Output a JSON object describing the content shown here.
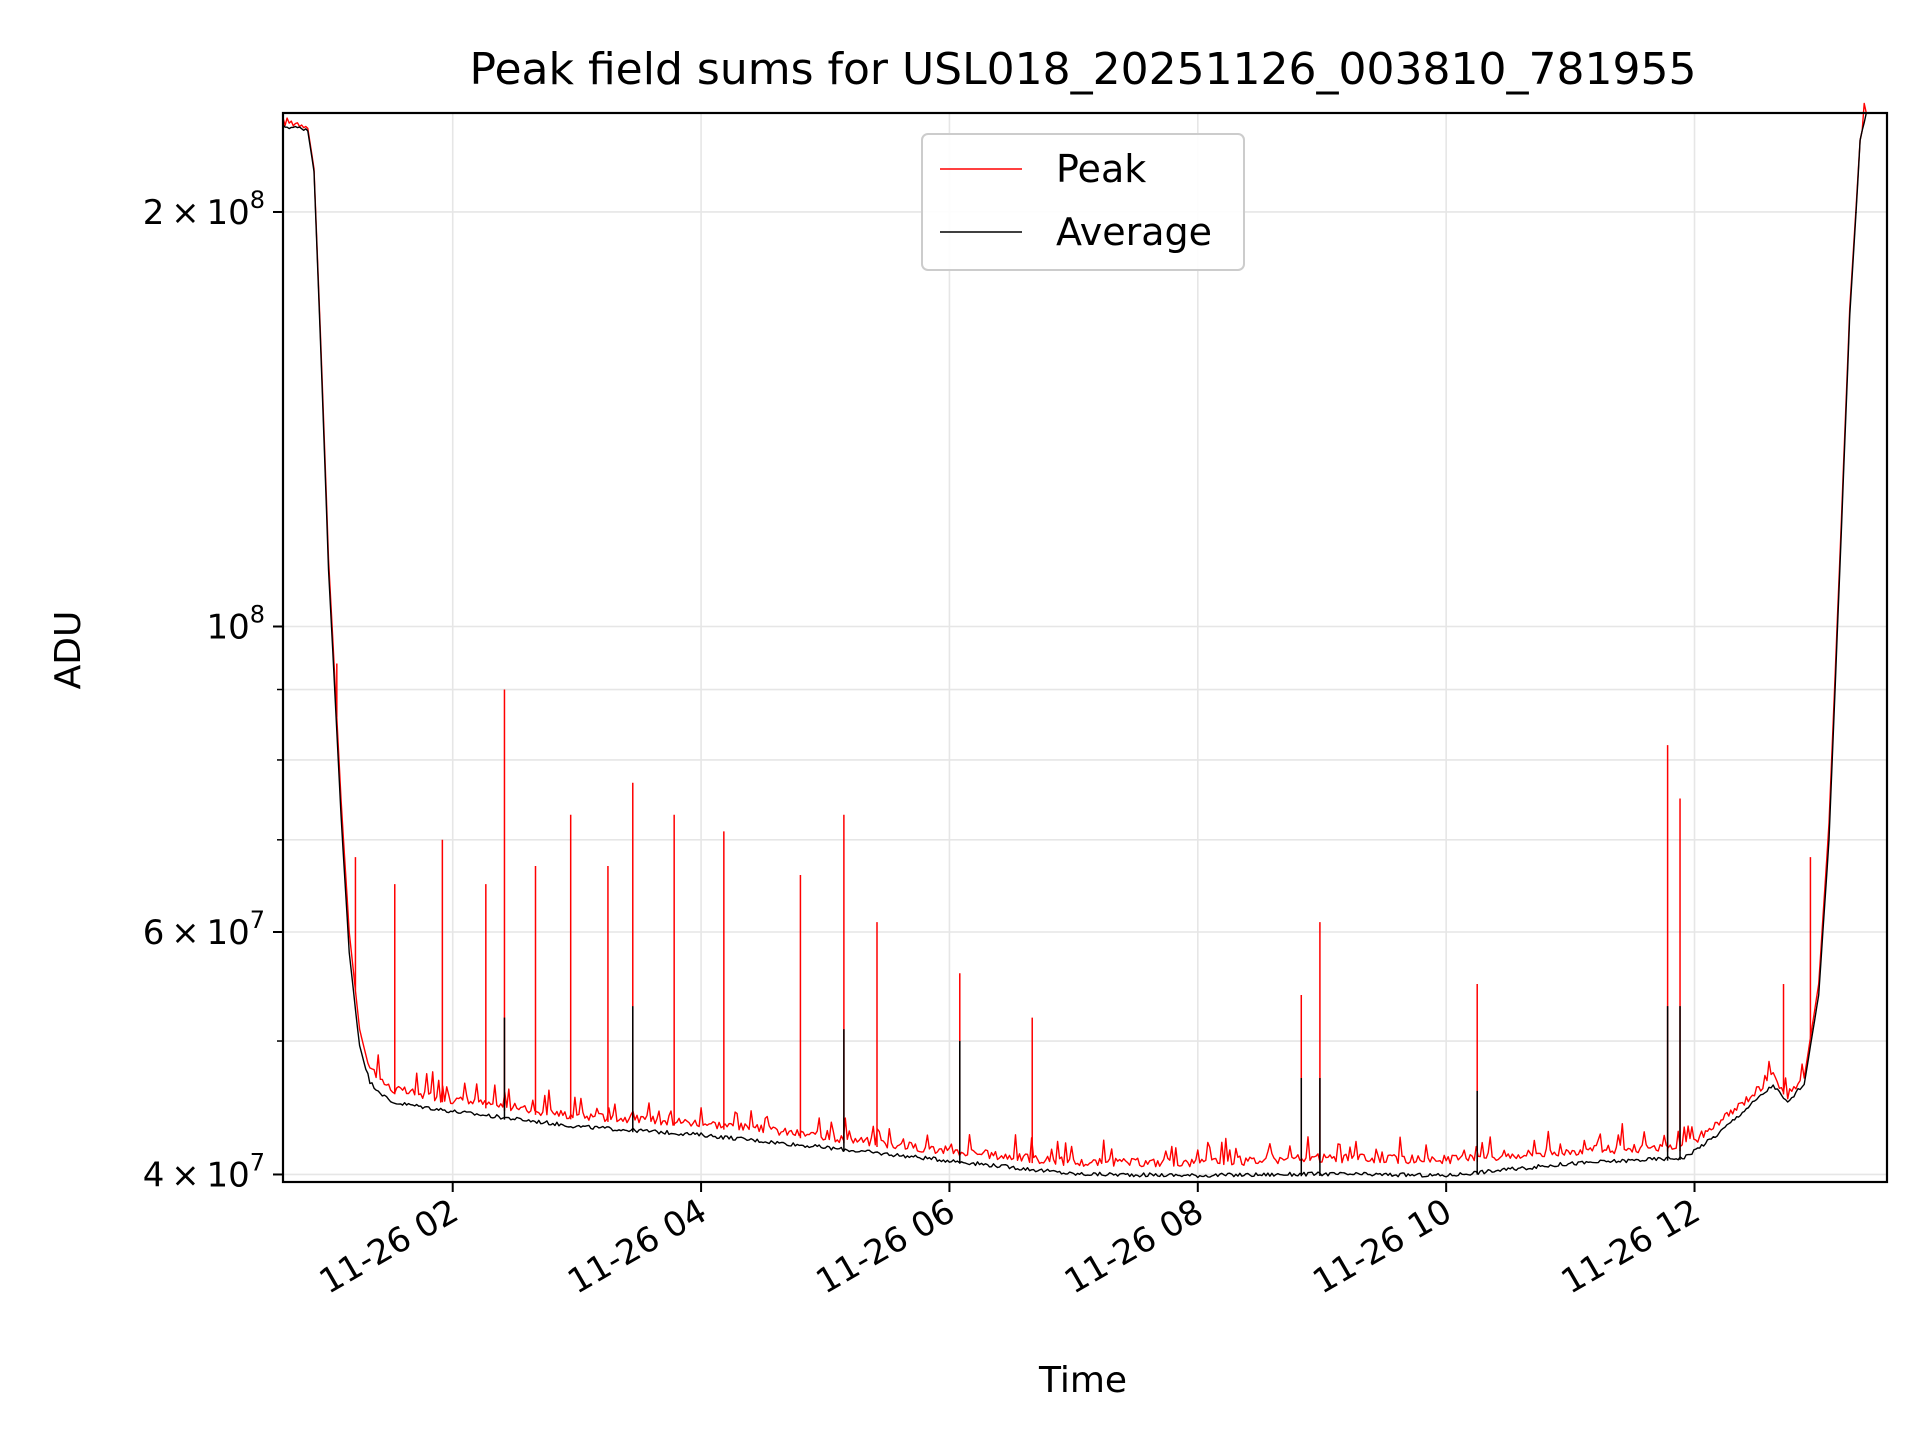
{
  "chart_data": {
    "type": "line",
    "title": "Peak field sums for USL018_20251126_003810_781955",
    "xlabel": "Time",
    "ylabel": "ADU",
    "y_scale": "log",
    "xlim": [
      "2025-11-26 00:38",
      "2025-11-26 13:33"
    ],
    "ylim": [
      39500000,
      236000000
    ],
    "grid": true,
    "legend_position": "top-center",
    "x_ticks": [
      {
        "value": "2025-11-26 02:00",
        "label": "11-26 02"
      },
      {
        "value": "2025-11-26 04:00",
        "label": "11-26 04"
      },
      {
        "value": "2025-11-26 06:00",
        "label": "11-26 06"
      },
      {
        "value": "2025-11-26 08:00",
        "label": "11-26 08"
      },
      {
        "value": "2025-11-26 10:00",
        "label": "11-26 10"
      },
      {
        "value": "2025-11-26 12:00",
        "label": "11-26 12"
      }
    ],
    "y_ticks": [
      {
        "value": 40000000,
        "mantissa": "4",
        "exponent": "7"
      },
      {
        "value": 60000000,
        "mantissa": "6",
        "exponent": "7"
      },
      {
        "value": 100000000,
        "mantissa": "",
        "exponent": "8"
      },
      {
        "value": 200000000,
        "mantissa": "2",
        "exponent": "8"
      }
    ],
    "series": [
      {
        "name": "Peak",
        "color": "#ff0000",
        "baseline": [
          [
            "2025-11-26 00:38",
            231000000
          ],
          [
            "2025-11-26 00:50",
            230000000
          ],
          [
            "2025-11-26 00:53",
            215000000
          ],
          [
            "2025-11-26 00:57",
            150000000
          ],
          [
            "2025-11-26 01:00",
            112000000
          ],
          [
            "2025-11-26 01:03",
            92000000
          ],
          [
            "2025-11-26 01:06",
            75000000
          ],
          [
            "2025-11-26 01:10",
            60000000
          ],
          [
            "2025-11-26 01:15",
            51000000
          ],
          [
            "2025-11-26 01:20",
            47500000
          ],
          [
            "2025-11-26 01:30",
            45800000
          ],
          [
            "2025-11-26 02:00",
            45000000
          ],
          [
            "2025-11-26 03:00",
            43800000
          ],
          [
            "2025-11-26 04:00",
            43300000
          ],
          [
            "2025-11-26 05:00",
            42300000
          ],
          [
            "2025-11-26 06:00",
            41300000
          ],
          [
            "2025-11-26 07:00",
            40500000
          ],
          [
            "2025-11-26 08:00",
            40500000
          ],
          [
            "2025-11-26 09:00",
            40800000
          ],
          [
            "2025-11-26 10:00",
            40700000
          ],
          [
            "2025-11-26 11:00",
            41300000
          ],
          [
            "2025-11-26 11:55",
            41600000
          ],
          [
            "2025-11-26 12:10",
            43000000
          ],
          [
            "2025-11-26 12:25",
            45000000
          ],
          [
            "2025-11-26 12:38",
            46800000
          ],
          [
            "2025-11-26 12:45",
            45300000
          ],
          [
            "2025-11-26 12:53",
            47000000
          ],
          [
            "2025-11-26 13:00",
            55000000
          ],
          [
            "2025-11-26 13:05",
            72000000
          ],
          [
            "2025-11-26 13:10",
            110000000
          ],
          [
            "2025-11-26 13:15",
            170000000
          ],
          [
            "2025-11-26 13:20",
            225000000
          ],
          [
            "2025-11-26 13:23",
            236000000
          ]
        ],
        "spikes": [
          [
            "2025-11-26 01:04",
            94000000
          ],
          [
            "2025-11-26 01:13",
            68000000
          ],
          [
            "2025-11-26 01:32",
            65000000
          ],
          [
            "2025-11-26 01:55",
            70000000
          ],
          [
            "2025-11-26 02:16",
            65000000
          ],
          [
            "2025-11-26 02:25",
            90000000
          ],
          [
            "2025-11-26 02:40",
            67000000
          ],
          [
            "2025-11-26 02:57",
            73000000
          ],
          [
            "2025-11-26 03:15",
            67000000
          ],
          [
            "2025-11-26 03:27",
            77000000
          ],
          [
            "2025-11-26 03:47",
            73000000
          ],
          [
            "2025-11-26 04:11",
            71000000
          ],
          [
            "2025-11-26 04:48",
            66000000
          ],
          [
            "2025-11-26 05:09",
            73000000
          ],
          [
            "2025-11-26 05:25",
            61000000
          ],
          [
            "2025-11-26 06:05",
            56000000
          ],
          [
            "2025-11-26 06:40",
            52000000
          ],
          [
            "2025-11-26 08:50",
            54000000
          ],
          [
            "2025-11-26 08:59",
            61000000
          ],
          [
            "2025-11-26 10:15",
            55000000
          ],
          [
            "2025-11-26 11:47",
            82000000
          ],
          [
            "2025-11-26 11:53",
            75000000
          ],
          [
            "2025-11-26 12:43",
            55000000
          ],
          [
            "2025-11-26 12:56",
            68000000
          ]
        ]
      },
      {
        "name": "Average",
        "color": "#000000",
        "baseline": [
          [
            "2025-11-26 00:38",
            230000000
          ],
          [
            "2025-11-26 00:50",
            229000000
          ],
          [
            "2025-11-26 00:53",
            214000000
          ],
          [
            "2025-11-26 00:57",
            148000000
          ],
          [
            "2025-11-26 01:00",
            110000000
          ],
          [
            "2025-11-26 01:03",
            90000000
          ],
          [
            "2025-11-26 01:06",
            73000000
          ],
          [
            "2025-11-26 01:10",
            58000000
          ],
          [
            "2025-11-26 01:15",
            49500000
          ],
          [
            "2025-11-26 01:20",
            46500000
          ],
          [
            "2025-11-26 01:30",
            45000000
          ],
          [
            "2025-11-26 02:00",
            44300000
          ],
          [
            "2025-11-26 03:00",
            43200000
          ],
          [
            "2025-11-26 04:00",
            42600000
          ],
          [
            "2025-11-26 05:00",
            41700000
          ],
          [
            "2025-11-26 06:00",
            40800000
          ],
          [
            "2025-11-26 07:00",
            39900000
          ],
          [
            "2025-11-26 08:00",
            39800000
          ],
          [
            "2025-11-26 09:00",
            39900000
          ],
          [
            "2025-11-26 10:00",
            39800000
          ],
          [
            "2025-11-26 11:00",
            40600000
          ],
          [
            "2025-11-26 11:55",
            41000000
          ],
          [
            "2025-11-26 12:10",
            42500000
          ],
          [
            "2025-11-26 12:25",
            44500000
          ],
          [
            "2025-11-26 12:38",
            46300000
          ],
          [
            "2025-11-26 12:45",
            44900000
          ],
          [
            "2025-11-26 12:53",
            46500000
          ],
          [
            "2025-11-26 13:00",
            54000000
          ],
          [
            "2025-11-26 13:05",
            70000000
          ],
          [
            "2025-11-26 13:10",
            108000000
          ],
          [
            "2025-11-26 13:15",
            168000000
          ],
          [
            "2025-11-26 13:20",
            224000000
          ],
          [
            "2025-11-26 13:23",
            236000000
          ]
        ],
        "spikes": [
          [
            "2025-11-26 02:25",
            52000000
          ],
          [
            "2025-11-26 03:27",
            53000000
          ],
          [
            "2025-11-26 05:09",
            51000000
          ],
          [
            "2025-11-26 06:05",
            50000000
          ],
          [
            "2025-11-26 08:50",
            47000000
          ],
          [
            "2025-11-26 08:59",
            47000000
          ],
          [
            "2025-11-26 10:15",
            46000000
          ],
          [
            "2025-11-26 11:47",
            53000000
          ],
          [
            "2025-11-26 11:53",
            53000000
          ],
          [
            "2025-11-26 13:18",
            200000000
          ]
        ]
      }
    ]
  }
}
